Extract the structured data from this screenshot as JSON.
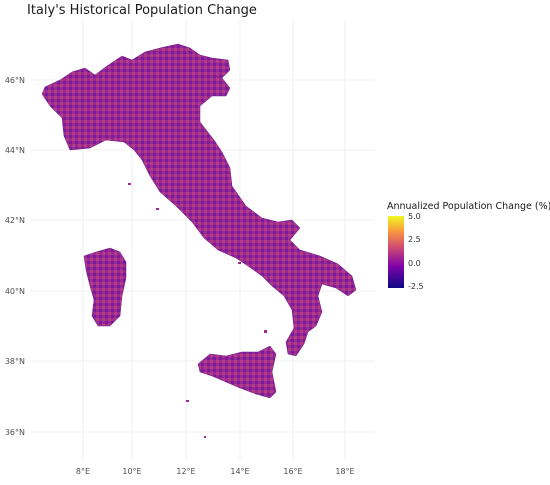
{
  "title": "Italy's Historical Population Change",
  "axes": {
    "lat_labels": [
      "46°N",
      "44°N",
      "42°N",
      "40°N",
      "38°N",
      "36°N"
    ],
    "lon_labels": [
      "8°E",
      "10°E",
      "12°E",
      "14°E",
      "16°E",
      "18°E"
    ]
  },
  "legend": {
    "title": "Annualized Population Change (%)",
    "labels": [
      "5.0",
      "2.5",
      "0.0",
      "-2.5"
    ],
    "colors": [
      "#0d0887",
      "#7e03a8",
      "#cc4778",
      "#f89540",
      "#f0f921"
    ]
  }
}
